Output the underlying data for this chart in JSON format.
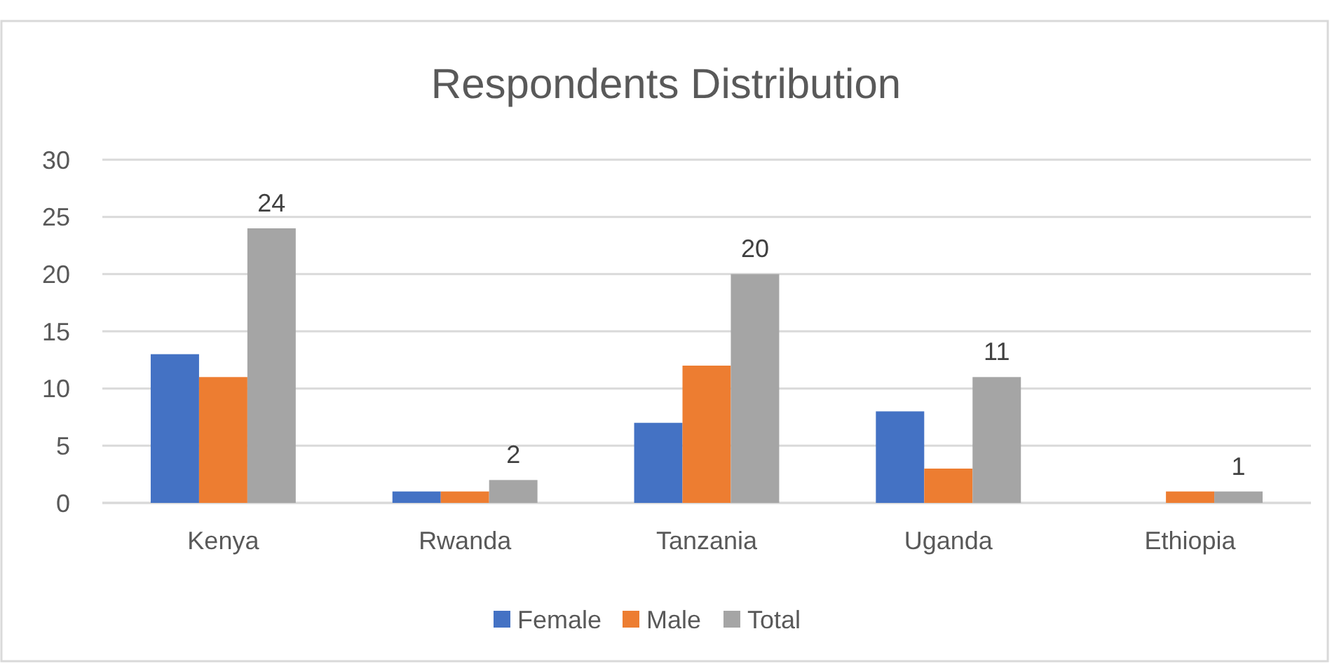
{
  "chart_data": {
    "type": "bar",
    "title": "Respondents Distribution",
    "categories": [
      "Kenya",
      "Rwanda",
      "Tanzania",
      "Uganda",
      "Ethiopia"
    ],
    "series": [
      {
        "name": "Female",
        "color": "#4472c4",
        "values": [
          13,
          1,
          7,
          8,
          null
        ]
      },
      {
        "name": "Male",
        "color": "#ed7d31",
        "values": [
          11,
          1,
          12,
          3,
          1
        ]
      },
      {
        "name": "Total",
        "color": "#a5a5a5",
        "values": [
          24,
          2,
          20,
          11,
          1
        ],
        "value_labels": [
          "24",
          "2",
          "20",
          "11",
          "1"
        ]
      }
    ],
    "ylim": [
      0,
      30
    ],
    "yticks": [
      0,
      5,
      10,
      15,
      20,
      25,
      30
    ],
    "grid": "y",
    "legend": "bottom"
  }
}
